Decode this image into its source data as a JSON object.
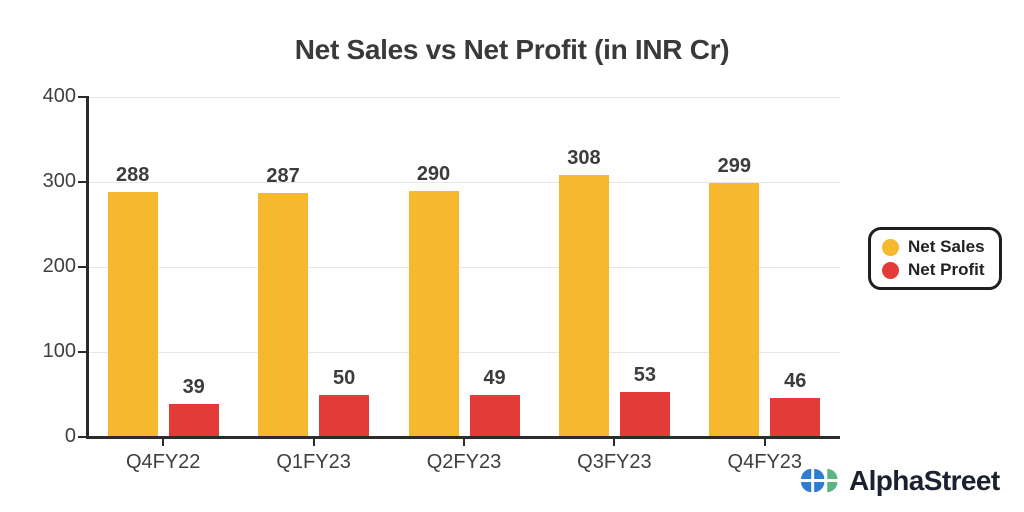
{
  "chart_data": {
    "type": "bar",
    "title": "Net Sales vs Net Profit (in INR Cr)",
    "categories": [
      "Q4FY22",
      "Q1FY23",
      "Q2FY23",
      "Q3FY23",
      "Q4FY23"
    ],
    "series": [
      {
        "name": "Net Sales",
        "color": "#F6B82F",
        "values": [
          288,
          287,
          290,
          308,
          299
        ]
      },
      {
        "name": "Net Profit",
        "color": "#E33B38",
        "values": [
          39,
          50,
          49,
          53,
          46
        ]
      }
    ],
    "xlabel": "",
    "ylabel": "",
    "ylim": [
      0,
      400
    ],
    "yticks": [
      0,
      100,
      200,
      300,
      400
    ],
    "grid": true,
    "legend_position": "right",
    "value_labels": true
  },
  "legend": {
    "items": [
      {
        "label": "Net Sales",
        "swatch": "circle"
      },
      {
        "label": "Net Profit",
        "swatch": "circle"
      }
    ]
  },
  "branding": {
    "name": "AlphaStreet",
    "icon": "alphastreet-flower-icon",
    "icon_colors": {
      "blue": "#2F7CD3",
      "green": "#5CB483"
    }
  },
  "colors": {
    "background": "#FFFFFF",
    "title_text": "#3A3A3A",
    "axis": "#2B2B2B",
    "gridline": "#E7E7E7",
    "tick_text": "#3F3F3F",
    "value_label_text": "#3C3C3C",
    "legend_border": "#1F1F1F",
    "brand_text": "#1B2130"
  }
}
